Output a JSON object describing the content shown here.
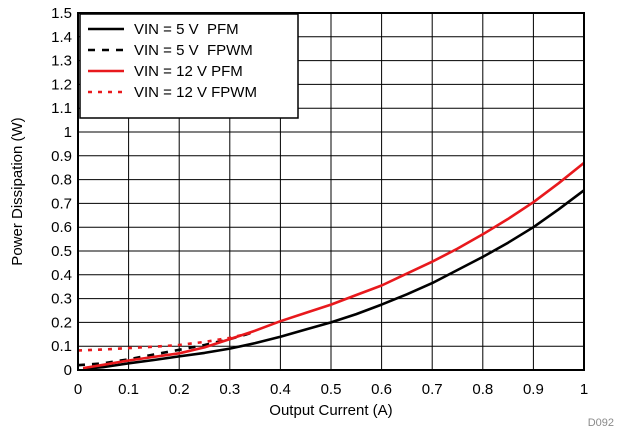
{
  "chart_data": {
    "type": "line",
    "xlabel": "Output Current (A)",
    "ylabel": "Power Dissipation (W)",
    "xlim": [
      0,
      1
    ],
    "ylim": [
      0,
      1.5
    ],
    "xticks": [
      "0",
      "0.1",
      "0.2",
      "0.3",
      "0.4",
      "0.5",
      "0.6",
      "0.7",
      "0.8",
      "0.9",
      "1"
    ],
    "yticks": [
      "0",
      "0.1",
      "0.2",
      "0.3",
      "0.4",
      "0.5",
      "0.6",
      "0.7",
      "0.8",
      "0.9",
      "1",
      "1.1",
      "1.2",
      "1.3",
      "1.4",
      "1.5"
    ],
    "grid": true,
    "legend_position": "top-left",
    "figure_id": "D092",
    "series": [
      {
        "name": "VIN = 5 V  PFM",
        "color": "#000000",
        "dash": "solid",
        "x": [
          0.01,
          0.05,
          0.1,
          0.15,
          0.2,
          0.25,
          0.3,
          0.35,
          0.4,
          0.45,
          0.5,
          0.55,
          0.6,
          0.65,
          0.7,
          0.75,
          0.8,
          0.85,
          0.9,
          0.95,
          1.0
        ],
        "y": [
          0.005,
          0.012,
          0.028,
          0.042,
          0.057,
          0.072,
          0.09,
          0.113,
          0.14,
          0.17,
          0.2,
          0.235,
          0.275,
          0.318,
          0.365,
          0.42,
          0.475,
          0.535,
          0.6,
          0.675,
          0.755
        ]
      },
      {
        "name": "VIN = 5 V  FPWM",
        "color": "#000000",
        "dash": "dashed",
        "x": [
          0.0,
          0.05,
          0.1,
          0.15,
          0.2,
          0.25,
          0.3,
          0.35
        ],
        "y": [
          0.02,
          0.028,
          0.045,
          0.065,
          0.085,
          0.105,
          0.13,
          0.16
        ]
      },
      {
        "name": "VIN = 12 V PFM",
        "color": "#e8191d",
        "dash": "solid",
        "x": [
          0.01,
          0.05,
          0.1,
          0.15,
          0.2,
          0.25,
          0.3,
          0.35,
          0.4,
          0.45,
          0.5,
          0.55,
          0.6,
          0.65,
          0.7,
          0.75,
          0.8,
          0.85,
          0.9,
          0.95,
          1.0
        ],
        "y": [
          0.008,
          0.022,
          0.04,
          0.055,
          0.07,
          0.095,
          0.13,
          0.165,
          0.205,
          0.24,
          0.275,
          0.315,
          0.355,
          0.405,
          0.455,
          0.51,
          0.57,
          0.635,
          0.705,
          0.785,
          0.87
        ]
      },
      {
        "name": "VIN = 12 V FPWM",
        "color": "#e8191d",
        "dash": "dotted",
        "x": [
          0.0,
          0.05,
          0.1,
          0.15,
          0.2,
          0.25,
          0.3,
          0.35
        ],
        "y": [
          0.082,
          0.086,
          0.092,
          0.098,
          0.105,
          0.118,
          0.135,
          0.16
        ]
      }
    ]
  }
}
